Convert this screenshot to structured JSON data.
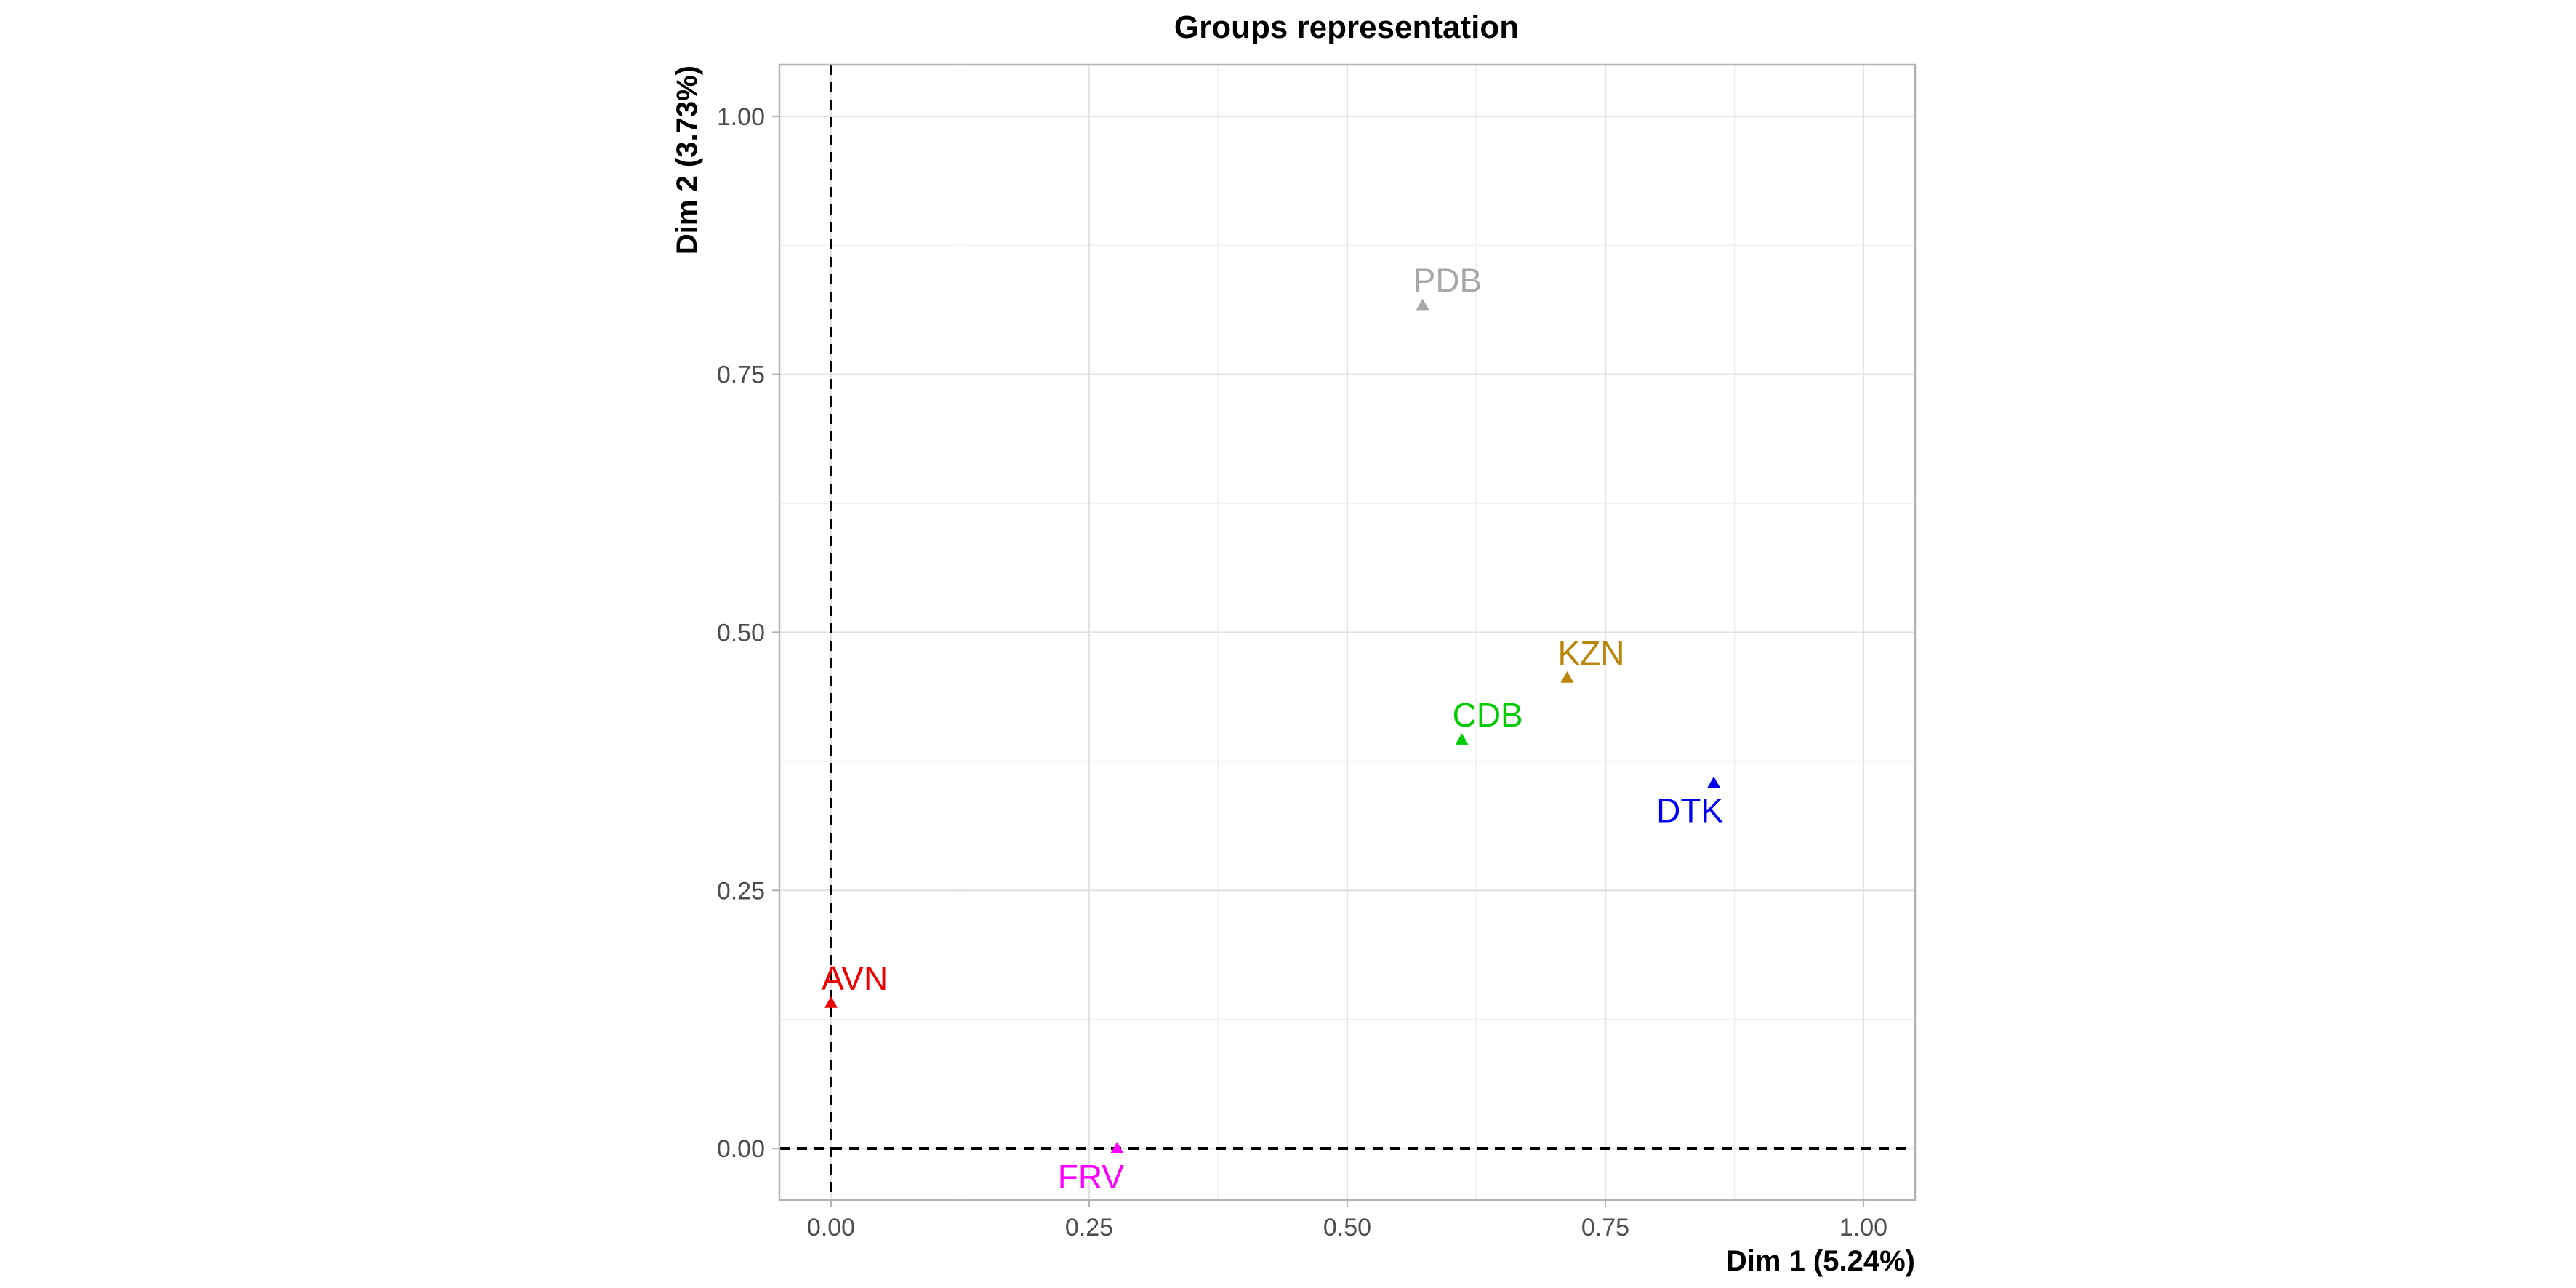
{
  "chart_data": {
    "type": "scatter",
    "title": "Groups representation",
    "xlabel": "Dim 1 (5.24%)",
    "ylabel": "Dim 2 (3.73%)",
    "xlim": [
      -0.05,
      1.05
    ],
    "ylim": [
      -0.05,
      1.05
    ],
    "xticks": [
      "0.00",
      "0.25",
      "0.50",
      "0.75",
      "1.00"
    ],
    "yticks": [
      "0.00",
      "0.25",
      "0.50",
      "0.75",
      "1.00"
    ],
    "grid": true,
    "reference_lines": {
      "x": 0,
      "y": 0,
      "style": "dashed"
    },
    "points": [
      {
        "label": "PDB",
        "x": 0.573,
        "y": 0.817,
        "color": "#a8a8a8",
        "label_position": "above"
      },
      {
        "label": "KZN",
        "x": 0.713,
        "y": 0.456,
        "color": "#b8860b",
        "label_position": "above"
      },
      {
        "label": "CDB",
        "x": 0.611,
        "y": 0.396,
        "color": "#00cc00",
        "label_position": "above"
      },
      {
        "label": "DTK",
        "x": 0.855,
        "y": 0.354,
        "color": "#0000ee",
        "label_position": "below-left"
      },
      {
        "label": "AVN",
        "x": 0.0,
        "y": 0.141,
        "color": "#ee0000",
        "label_position": "above"
      },
      {
        "label": "FRV",
        "x": 0.277,
        "y": 0.0,
        "color": "#ff00ff",
        "label_position": "below"
      }
    ]
  }
}
